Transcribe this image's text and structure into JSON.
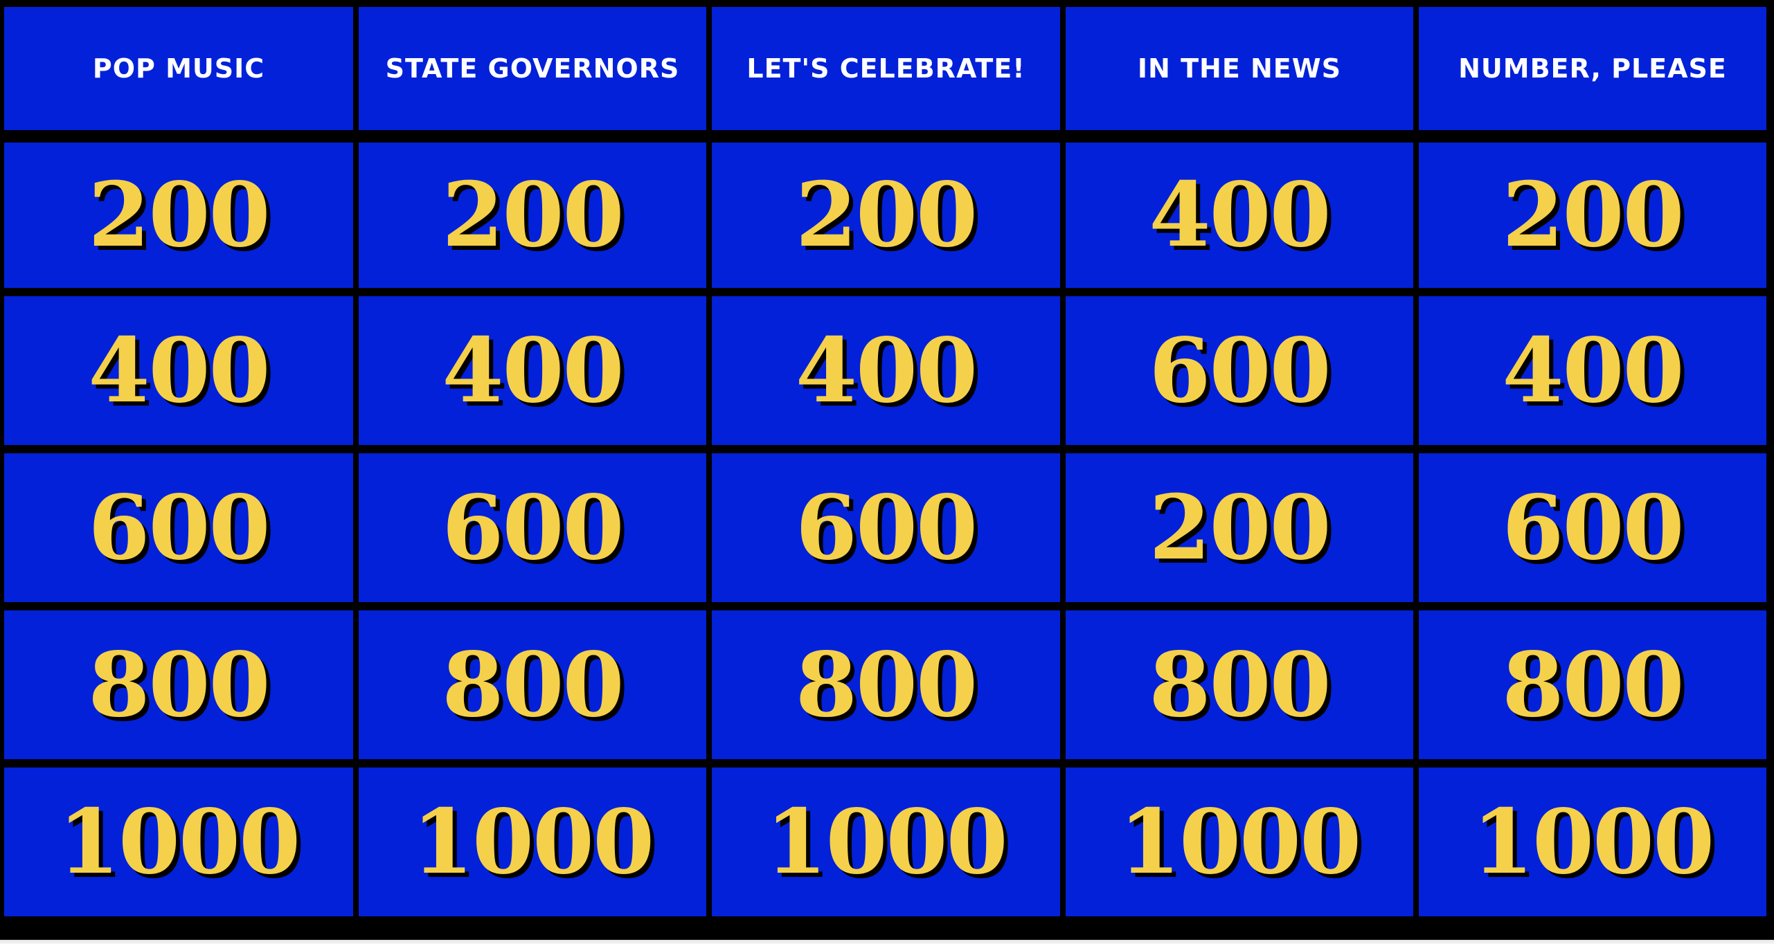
{
  "board": {
    "categories": [
      "POP MUSIC",
      "STATE GOVERNORS",
      "LET'S CELEBRATE!",
      "IN THE NEWS",
      "NUMBER, PLEASE"
    ],
    "rows": [
      [
        "200",
        "200",
        "200",
        "400",
        "200"
      ],
      [
        "400",
        "400",
        "400",
        "600",
        "400"
      ],
      [
        "600",
        "600",
        "600",
        "200",
        "600"
      ],
      [
        "800",
        "800",
        "800",
        "800",
        "800"
      ],
      [
        "1000",
        "1000",
        "1000",
        "1000",
        "1000"
      ]
    ]
  },
  "colors": {
    "tile_blue": "#0221d9",
    "value_gold": "#f5d04b",
    "header_text": "#ffffff",
    "grid_lines": "#000000"
  }
}
